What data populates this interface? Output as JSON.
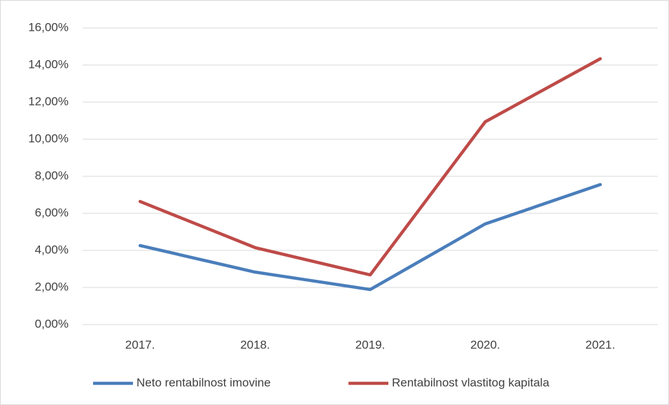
{
  "chart_data": {
    "type": "line",
    "categories": [
      "2017.",
      "2018.",
      "2019.",
      "2020.",
      "2021."
    ],
    "series": [
      {
        "name": "Neto rentabilnost imovine",
        "color": "#4a7ebb",
        "values": [
          4.26,
          2.83,
          1.89,
          5.43,
          7.55
        ]
      },
      {
        "name": "Rentabilnost vlastitog kapitala",
        "color": "#be4b48",
        "values": [
          6.64,
          4.15,
          2.68,
          10.94,
          14.34
        ]
      }
    ],
    "ylim": [
      0,
      16
    ],
    "yticks": [
      {
        "value": 0,
        "label": "0,00%"
      },
      {
        "value": 2,
        "label": "2,00%"
      },
      {
        "value": 4,
        "label": "4,00%"
      },
      {
        "value": 6,
        "label": "6,00%"
      },
      {
        "value": 8,
        "label": "8,00%"
      },
      {
        "value": 10,
        "label": "10,00%"
      },
      {
        "value": 12,
        "label": "12,00%"
      },
      {
        "value": 14,
        "label": "14,00%"
      },
      {
        "value": 16,
        "label": "16,00%"
      }
    ],
    "grid": true,
    "legend": "bottom"
  }
}
